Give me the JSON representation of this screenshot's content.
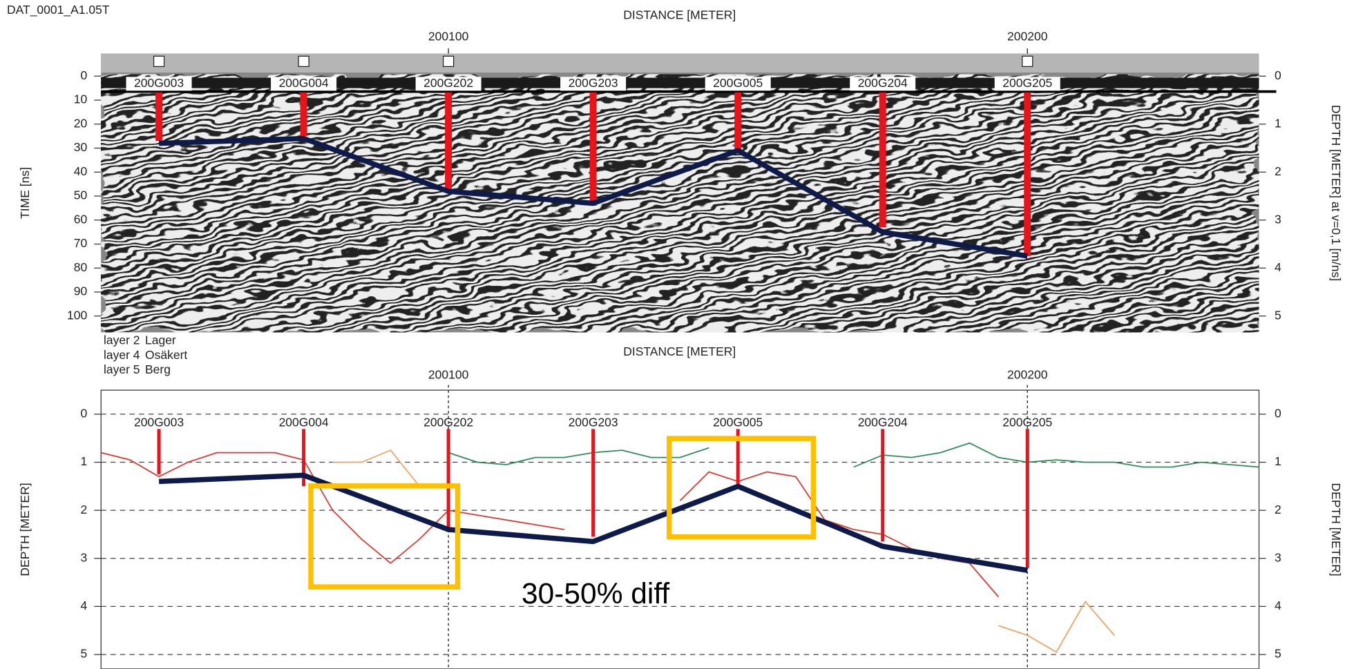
{
  "file_label": "DAT_0001_A1.05T",
  "chart_data": [
    {
      "type": "line",
      "title": "DISTANCE [METER]",
      "ylabel": "TIME [ns]",
      "y2label": "DEPTH [METER] at v=0,1 [m/ns]",
      "xlim": [
        200040,
        200240
      ],
      "xticks": [
        200100,
        200200
      ],
      "ylim": [
        -9.4,
        106.8
      ],
      "y_reversed": true,
      "yticks": [
        0,
        10,
        20,
        30,
        40,
        50,
        60,
        70,
        80,
        90,
        100
      ],
      "y2lim": [
        -0.47,
        5.34
      ],
      "y2ticks": [
        0,
        1,
        2,
        3,
        4,
        5
      ],
      "marker_x": [
        200050,
        200075,
        200100,
        200200
      ],
      "boreholes": {
        "color": "#e8141b",
        "labels": [
          "200G003",
          "200G004",
          "200G202",
          "200G203",
          "200G005",
          "200G204",
          "200G205"
        ],
        "x": [
          200050,
          200075,
          200100,
          200125,
          200150,
          200175,
          200200
        ],
        "values": [
          27,
          25,
          47,
          54,
          31,
          63,
          75
        ]
      },
      "interpretation": {
        "color": "#0d1a4a",
        "x": [
          200050,
          200075,
          200100,
          200125,
          200150,
          200175,
          200200
        ],
        "values": [
          28,
          26,
          48,
          53,
          31,
          65,
          75
        ]
      }
    },
    {
      "type": "line",
      "title": "DISTANCE [METER]",
      "ylabel": "DEPTH [METER]",
      "y2label": "DEPTH [METER]",
      "xlim": [
        200040,
        200240
      ],
      "xticks": [
        200100,
        200200
      ],
      "ylim": [
        -0.5,
        5.3
      ],
      "y_reversed": true,
      "yticks": [
        0,
        1,
        2,
        3,
        4,
        5
      ],
      "y2lim": [
        -0.5,
        5.3
      ],
      "y2ticks": [
        0,
        1,
        2,
        3,
        4,
        5
      ],
      "grid": true,
      "x": [
        200040,
        200045,
        200050,
        200055,
        200060,
        200065,
        200070,
        200075,
        200080,
        200085,
        200090,
        200095,
        200100,
        200105,
        200110,
        200115,
        200120,
        200125,
        200130,
        200135,
        200140,
        200145,
        200150,
        200155,
        200160,
        200165,
        200170,
        200175,
        200180,
        200185,
        200190,
        200195,
        200200,
        200205,
        200210,
        200215,
        200220,
        200225,
        200230,
        200235,
        200240
      ],
      "series": [
        {
          "name": "layer 2",
          "label": "Lager",
          "color": "#2e8b57",
          "values": [
            null,
            null,
            null,
            null,
            null,
            null,
            null,
            null,
            null,
            null,
            null,
            null,
            0.8,
            1.0,
            1.05,
            0.9,
            0.9,
            0.8,
            0.75,
            0.9,
            0.9,
            0.7,
            null,
            null,
            null,
            null,
            1.1,
            0.85,
            0.9,
            0.8,
            0.6,
            0.9,
            1.0,
            0.95,
            1.0,
            1.0,
            1.1,
            1.1,
            1.0,
            1.05,
            1.1
          ]
        },
        {
          "name": "layer 4",
          "label": "Osäkert",
          "color": "#f4a060",
          "values": [
            null,
            null,
            null,
            null,
            null,
            null,
            null,
            null,
            1.0,
            1.0,
            0.75,
            1.5,
            null,
            null,
            null,
            null,
            null,
            null,
            null,
            null,
            null,
            null,
            null,
            null,
            null,
            null,
            null,
            null,
            null,
            null,
            null,
            4.4,
            4.6,
            4.95,
            3.9,
            4.6,
            null,
            null,
            null,
            null,
            null
          ]
        },
        {
          "name": "layer 5",
          "label": "Berg",
          "color": "#e0352b",
          "values": [
            0.8,
            0.95,
            1.3,
            1.0,
            0.8,
            0.8,
            0.8,
            0.95,
            2.0,
            2.6,
            3.1,
            2.6,
            2.0,
            2.1,
            2.2,
            2.3,
            2.4,
            null,
            null,
            null,
            1.8,
            1.2,
            1.4,
            1.2,
            1.3,
            2.2,
            2.4,
            2.5,
            2.8,
            3.0,
            3.1,
            3.8,
            null,
            null,
            null,
            null,
            null,
            null,
            null,
            null,
            null
          ]
        }
      ],
      "boreholes": {
        "color": "#e8141b",
        "labels": [
          "200G003",
          "200G004",
          "200G202",
          "200G203",
          "200G005",
          "200G204",
          "200G205"
        ],
        "x": [
          200050,
          200075,
          200100,
          200125,
          200150,
          200175,
          200200
        ],
        "values": [
          1.25,
          1.5,
          2.4,
          2.55,
          1.45,
          2.65,
          3.2
        ]
      },
      "interpretation": {
        "color": "#0d1a4a",
        "x": [
          200050,
          200075,
          200100,
          200125,
          200150,
          200175,
          200200
        ],
        "values": [
          1.4,
          1.27,
          2.4,
          2.65,
          1.5,
          2.75,
          3.25
        ]
      },
      "annotation": "30-50% diff",
      "highlight_color": "#ffc000"
    }
  ]
}
